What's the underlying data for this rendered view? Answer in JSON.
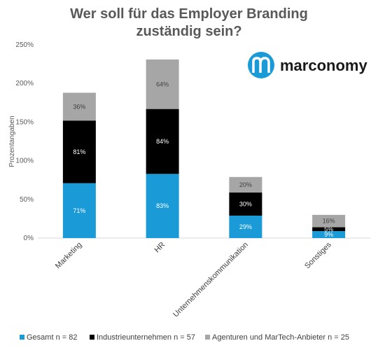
{
  "chart_data": {
    "type": "bar",
    "stacked": true,
    "title_lines": [
      "Wer soll für das Employer Branding",
      "zuständig sein?"
    ],
    "ylabel": "Prozentangaben",
    "xlabel": "",
    "ylim": [
      0,
      250
    ],
    "y_ticks": [
      0,
      50,
      100,
      150,
      200,
      250
    ],
    "y_tick_labels": [
      "0%",
      "50%",
      "100%",
      "150%",
      "200%",
      "250%"
    ],
    "categories": [
      "Marketing",
      "HR",
      "Unternehmenskommunikation",
      "Sonstiges"
    ],
    "series": [
      {
        "name": "Gesamt n = 82",
        "color": "#1a9bd7",
        "values": [
          71,
          83,
          29,
          9
        ],
        "labels": [
          "71%",
          "83%",
          "29%",
          "9%"
        ],
        "label_color": "#ffffff"
      },
      {
        "name": "Industrieunternehmen n = 57",
        "color": "#000000",
        "values": [
          81,
          84,
          30,
          5
        ],
        "labels": [
          "81%",
          "84%",
          "30%",
          "5%"
        ],
        "label_color": "#ffffff"
      },
      {
        "name": "Agenturen und MarTech-Anbieter n = 25",
        "color": "#a6a6a6",
        "values": [
          36,
          64,
          20,
          16
        ],
        "labels": [
          "36%",
          "64%",
          "20%",
          "16%"
        ],
        "label_color": "#404040"
      }
    ],
    "legend_position": "bottom",
    "grid": false
  },
  "logo": {
    "text": "marconomy",
    "accent_color": "#1a9bd7"
  }
}
